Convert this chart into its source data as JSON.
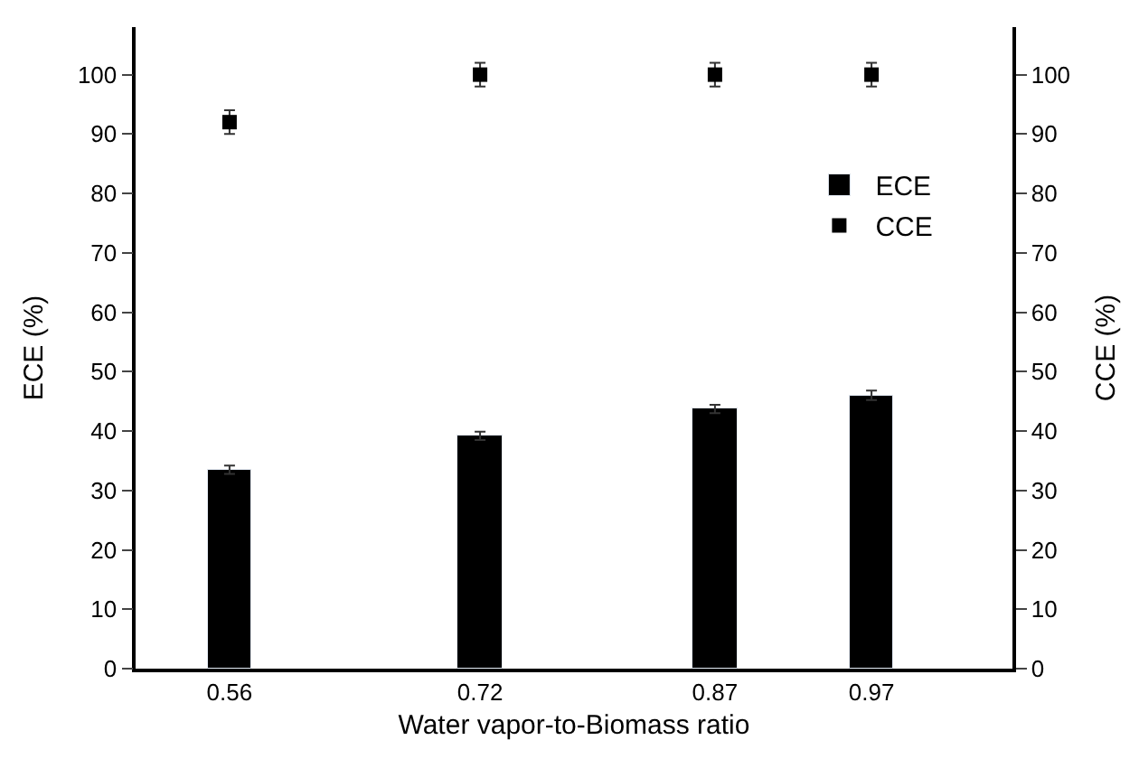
{
  "chart_data": {
    "type": "bar",
    "xlabel": "Water vapor-to-Biomass ratio",
    "ylabel": "ECE (%)",
    "y2label": "CCE (%)",
    "x": [
      0.56,
      0.72,
      0.87,
      0.97
    ],
    "xlim": [
      0.5,
      1.06
    ],
    "xticks": [
      0.56,
      0.72,
      0.87,
      0.97
    ],
    "ylim": [
      0,
      108
    ],
    "yticks": [
      0,
      10,
      20,
      30,
      40,
      50,
      60,
      70,
      80,
      90,
      100
    ],
    "y2lim": [
      0,
      108
    ],
    "y2ticks": [
      0,
      10,
      20,
      30,
      40,
      50,
      60,
      70,
      80,
      90,
      100
    ],
    "series": [
      {
        "name": "ECE",
        "color": "#000000",
        "values": [
          33.5,
          39.2,
          43.7,
          46
        ],
        "errors": [
          0.7,
          0.7,
          0.7,
          0.8
        ]
      },
      {
        "name": "CCE",
        "type": "scatter",
        "axis": "y2",
        "color": "#000000",
        "marker": "square",
        "values": [
          92,
          100,
          100,
          100
        ],
        "errors": [
          2,
          2,
          2,
          2
        ]
      }
    ],
    "legend": "top right"
  }
}
